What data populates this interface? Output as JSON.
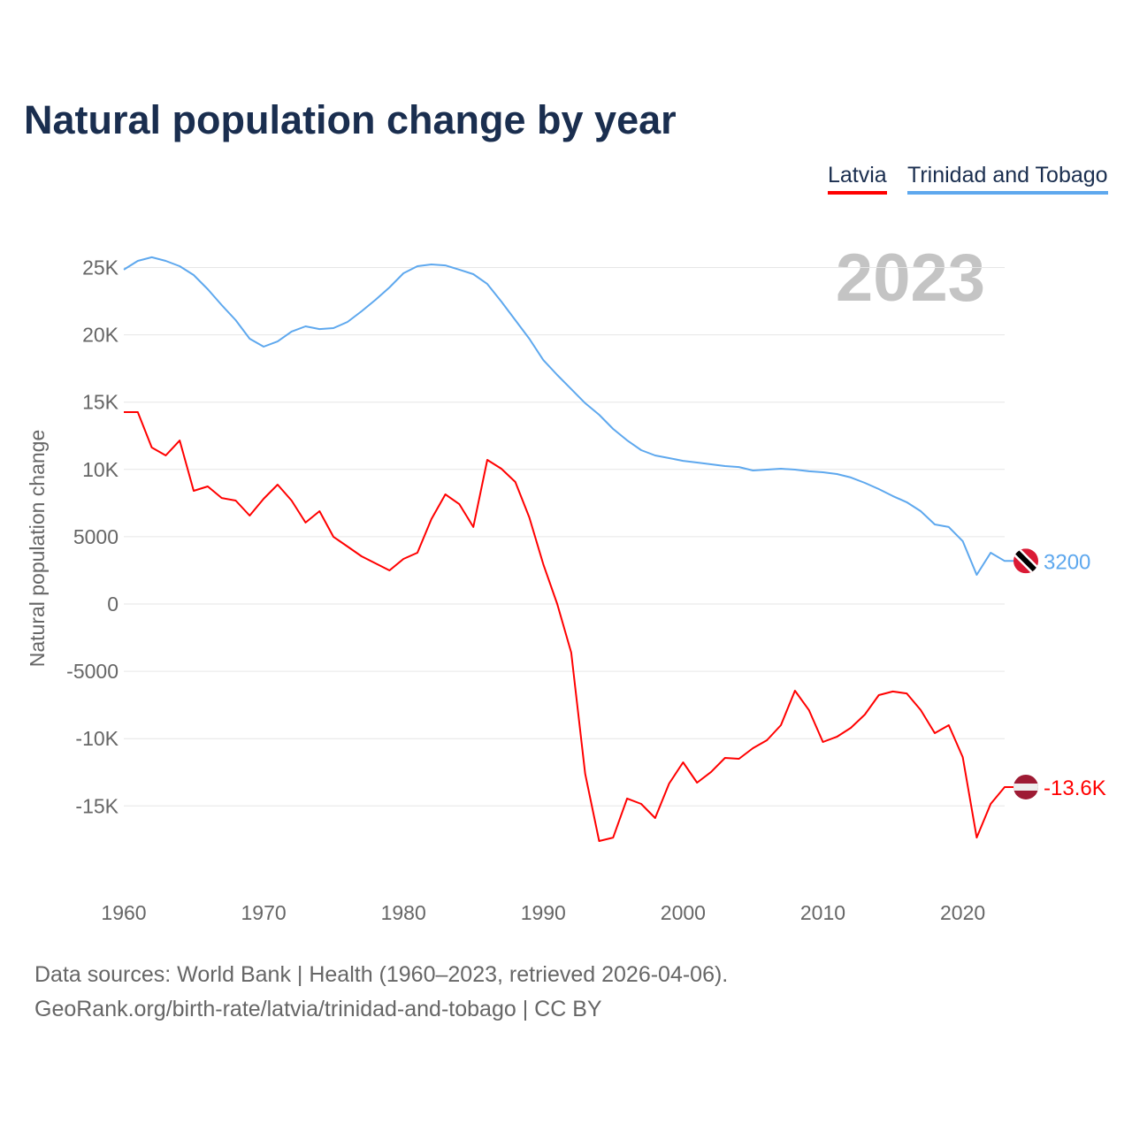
{
  "chart_data": {
    "type": "line",
    "title": "Natural population change by year",
    "xlabel": "",
    "ylabel": "Natural population change",
    "xlim": [
      1960,
      2023
    ],
    "ylim": [
      -20000,
      27000
    ],
    "x_ticks": [
      1960,
      1970,
      1980,
      1990,
      2000,
      2010,
      2020
    ],
    "x_tick_labels": [
      "1960",
      "1970",
      "1980",
      "1990",
      "2000",
      "2010",
      "2020"
    ],
    "y_ticks": [
      25000,
      20000,
      15000,
      10000,
      5000,
      0,
      -5000,
      -10000,
      -15000
    ],
    "y_tick_labels": [
      "25K",
      "20K",
      "15K",
      "10K",
      "5000",
      "0",
      "-5000",
      "-10K",
      "-15K"
    ],
    "grid": true,
    "legend_placement": "top-right",
    "year_watermark": "2023",
    "x": [
      1960,
      1961,
      1962,
      1963,
      1964,
      1965,
      1966,
      1967,
      1968,
      1969,
      1970,
      1971,
      1972,
      1973,
      1974,
      1975,
      1976,
      1977,
      1978,
      1979,
      1980,
      1981,
      1982,
      1983,
      1984,
      1985,
      1986,
      1987,
      1988,
      1989,
      1990,
      1991,
      1992,
      1993,
      1994,
      1995,
      1996,
      1997,
      1998,
      1999,
      2000,
      2001,
      2002,
      2003,
      2004,
      2005,
      2006,
      2007,
      2008,
      2009,
      2010,
      2011,
      2012,
      2013,
      2014,
      2015,
      2016,
      2017,
      2018,
      2019,
      2020,
      2021,
      2022,
      2023
    ],
    "series": [
      {
        "name": "Latvia",
        "color": "#ff0000",
        "end_label": "-13.6K",
        "flag": "latvia-flag",
        "values": [
          14260,
          14260,
          11630,
          11040,
          12150,
          8410,
          8740,
          7880,
          7690,
          6570,
          7820,
          8870,
          7690,
          6050,
          6900,
          4990,
          4270,
          3550,
          3020,
          2500,
          3350,
          3810,
          6310,
          8150,
          7420,
          5720,
          10710,
          10050,
          9070,
          6440,
          2960,
          0,
          -3610,
          -12620,
          -17610,
          -17350,
          -14450,
          -14850,
          -15900,
          -13340,
          -11760,
          -13270,
          -12480,
          -11430,
          -11500,
          -10710,
          -10120,
          -9000,
          -6440,
          -7880,
          -10250,
          -9860,
          -9200,
          -8210,
          -6770,
          -6500,
          -6640,
          -7880,
          -9590,
          -9000,
          -11370,
          -17350,
          -14850,
          -13600
        ]
      },
      {
        "name": "Trinidad and Tobago",
        "color": "#5ea8ee",
        "end_label": "3200",
        "flag": "trinidad-flag",
        "values": [
          24840,
          25490,
          25760,
          25490,
          25100,
          24440,
          23390,
          22210,
          21090,
          19710,
          19120,
          19510,
          20240,
          20630,
          20430,
          20500,
          20960,
          21750,
          22600,
          23520,
          24570,
          25100,
          25230,
          25160,
          24840,
          24510,
          23780,
          22470,
          21090,
          19710,
          18130,
          17020,
          15970,
          14920,
          14060,
          13010,
          12160,
          11430,
          11040,
          10840,
          10640,
          10510,
          10380,
          10250,
          10180,
          9920,
          9990,
          10050,
          9990,
          9860,
          9790,
          9660,
          9400,
          9000,
          8540,
          8020,
          7560,
          6900,
          5910,
          5720,
          4670,
          2170,
          3810,
          3200
        ]
      }
    ]
  },
  "footer": {
    "line1": "Data sources: World Bank | Health (1960–2023, retrieved 2026-04-06).",
    "line2": "GeoRank.org/birth-rate/latvia/trinidad-and-tobago | CC BY"
  }
}
